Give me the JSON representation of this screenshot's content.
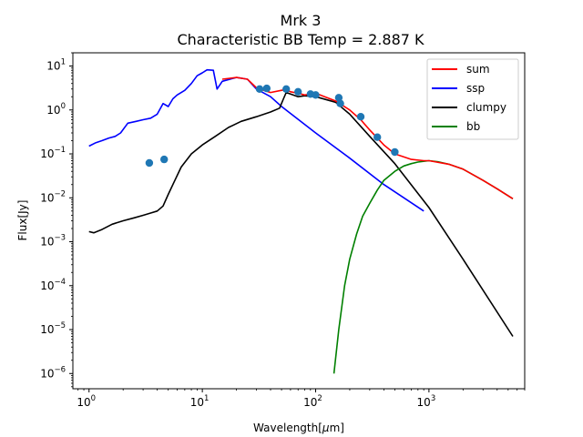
{
  "chart_data": {
    "type": "line",
    "title": "Mrk 3",
    "subtitle": "Characteristic BB Temp = 2.887 K",
    "xlabel_pre": "Wavelength[",
    "xlabel_mu": "μ",
    "xlabel_post": "m]",
    "ylabel": "Flux[Jy]",
    "xscale": "log",
    "yscale": "log",
    "xlim": [
      0.72,
      7000
    ],
    "ylim": [
      4.5e-07,
      20
    ],
    "x_ticks": [
      {
        "label": "10",
        "exp": "0",
        "value": 1
      },
      {
        "label": "10",
        "exp": "1",
        "value": 10
      },
      {
        "label": "10",
        "exp": "2",
        "value": 100
      },
      {
        "label": "10",
        "exp": "3",
        "value": 1000
      }
    ],
    "y_ticks": [
      {
        "label": "10",
        "exp": "−6",
        "value": 1e-06
      },
      {
        "label": "10",
        "exp": "−5",
        "value": 1e-05
      },
      {
        "label": "10",
        "exp": "−4",
        "value": 0.0001
      },
      {
        "label": "10",
        "exp": "−3",
        "value": 0.001
      },
      {
        "label": "10",
        "exp": "−2",
        "value": 0.01
      },
      {
        "label": "10",
        "exp": "−1",
        "value": 0.1
      },
      {
        "label": "10",
        "exp": "0",
        "value": 1
      },
      {
        "label": "10",
        "exp": "1",
        "value": 10
      }
    ],
    "legend_position": "top-right",
    "legend": [
      {
        "name": "sum",
        "color": "#ff0000"
      },
      {
        "name": "ssp",
        "color": "#0000ff"
      },
      {
        "name": "clumpy",
        "color": "#000000"
      },
      {
        "name": "bb",
        "color": "#008000"
      }
    ],
    "series": [
      {
        "name": "ssp",
        "color": "#0000ff",
        "x": [
          1.0,
          1.15,
          1.3,
          1.5,
          1.7,
          1.9,
          2.2,
          2.6,
          3.0,
          3.5,
          4.0,
          4.5,
          5.0,
          5.5,
          6.0,
          7.0,
          8.0,
          9.0,
          10.0,
          11.0,
          12.5,
          13.5,
          15,
          20,
          25,
          30,
          40,
          50,
          100,
          200,
          400,
          900
        ],
        "y": [
          0.15,
          0.18,
          0.2,
          0.23,
          0.25,
          0.3,
          0.5,
          0.55,
          0.6,
          0.65,
          0.8,
          1.4,
          1.2,
          1.8,
          2.2,
          2.8,
          4.0,
          6.0,
          7.0,
          8.2,
          8.0,
          3.0,
          4.5,
          5.5,
          5.0,
          3.0,
          2.0,
          1.2,
          0.3,
          0.08,
          0.02,
          0.005
        ]
      },
      {
        "name": "clumpy",
        "color": "#000000",
        "x": [
          1.0,
          1.1,
          1.3,
          1.6,
          2.0,
          2.5,
          3.0,
          3.5,
          4.0,
          4.5,
          5.0,
          5.5,
          6.5,
          8.0,
          10,
          13,
          17,
          22,
          30,
          40,
          48,
          52,
          55,
          60,
          70,
          80,
          100,
          150,
          200,
          300,
          500,
          1000,
          2000,
          5500
        ],
        "y": [
          0.0017,
          0.0016,
          0.0019,
          0.0025,
          0.003,
          0.0035,
          0.004,
          0.0045,
          0.005,
          0.0065,
          0.012,
          0.02,
          0.05,
          0.1,
          0.16,
          0.25,
          0.4,
          0.55,
          0.7,
          0.9,
          1.1,
          1.8,
          2.5,
          2.3,
          2.0,
          2.1,
          2.0,
          1.5,
          0.8,
          0.25,
          0.06,
          0.006,
          0.0004,
          7e-06
        ]
      },
      {
        "name": "bb",
        "color": "#008000",
        "x": [
          145,
          160,
          180,
          200,
          230,
          260,
          300,
          350,
          400,
          500,
          600,
          700,
          800,
          1000,
          1200,
          1500,
          2000,
          3000,
          4000,
          5500
        ],
        "y": [
          1e-06,
          1e-05,
          0.0001,
          0.0004,
          0.0015,
          0.0038,
          0.0075,
          0.015,
          0.025,
          0.04,
          0.053,
          0.06,
          0.065,
          0.07,
          0.066,
          0.058,
          0.045,
          0.025,
          0.016,
          0.0095
        ]
      },
      {
        "name": "sum",
        "color": "#ff0000",
        "x": [
          15,
          20,
          25,
          30,
          35,
          40,
          50,
          55,
          60,
          70,
          80,
          90,
          100,
          120,
          150,
          200,
          250,
          300,
          400,
          500,
          700,
          900,
          1000,
          1500,
          2000,
          3000,
          4000,
          5500
        ],
        "y": [
          5.0,
          5.5,
          5.0,
          3.2,
          2.8,
          2.5,
          2.8,
          2.9,
          2.6,
          2.4,
          2.2,
          2.3,
          2.4,
          2.0,
          1.6,
          1.0,
          0.6,
          0.35,
          0.16,
          0.1,
          0.075,
          0.07,
          0.07,
          0.058,
          0.045,
          0.025,
          0.016,
          0.0095
        ]
      },
      {
        "name": "observed",
        "color": "#1f77b4",
        "type": "scatter",
        "x": [
          3.4,
          4.6,
          32,
          37,
          55,
          70,
          90,
          100,
          160,
          165,
          250,
          350,
          500
        ],
        "y": [
          0.062,
          0.075,
          3.0,
          3.1,
          3.0,
          2.6,
          2.3,
          2.2,
          1.9,
          1.4,
          0.7,
          0.24,
          0.11
        ]
      }
    ]
  }
}
